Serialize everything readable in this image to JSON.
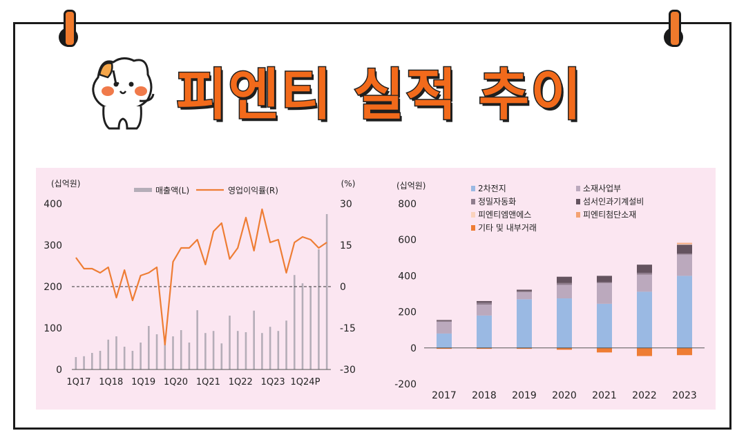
{
  "title": "피엔티 실적 추이",
  "colors": {
    "accent": "#f26a1b",
    "panel_bg": "#fbe6f1",
    "bar_gray": "#b5adb8",
    "line_orange": "#ee7d34"
  },
  "chart_data": [
    {
      "type": "bar+line",
      "title": "",
      "unit_left": "(십억원)",
      "unit_right": "(%)",
      "legend": {
        "bar": "매출액(L)",
        "line": "영업이익률(R)"
      },
      "ylim_left": [
        0,
        400
      ],
      "yticks_left": [
        0,
        100,
        200,
        300,
        400
      ],
      "ylim_right": [
        -30,
        30
      ],
      "yticks_right": [
        "-30",
        "-15",
        "0",
        "15",
        "30"
      ],
      "xtick_labels": [
        "1Q17",
        "1Q18",
        "1Q19",
        "1Q20",
        "1Q21",
        "1Q22",
        "1Q23",
        "1Q24P"
      ],
      "quarters": [
        "1Q17",
        "2Q17",
        "3Q17",
        "4Q17",
        "1Q18",
        "2Q18",
        "3Q18",
        "4Q18",
        "1Q19",
        "2Q19",
        "3Q19",
        "4Q19",
        "1Q20",
        "2Q20",
        "3Q20",
        "4Q20",
        "1Q21",
        "2Q21",
        "3Q21",
        "4Q21",
        "1Q22",
        "2Q22",
        "3Q22",
        "4Q22",
        "1Q23",
        "2Q23",
        "3Q23",
        "4Q23",
        "1Q24",
        "2Q24",
        "3Q24",
        "4Q24"
      ],
      "series": [
        {
          "name": "매출액(L)",
          "type": "bar",
          "axis": "left",
          "values": [
            30,
            32,
            40,
            45,
            72,
            80,
            55,
            45,
            65,
            105,
            85,
            75,
            80,
            95,
            65,
            143,
            88,
            93,
            63,
            130,
            93,
            90,
            142,
            88,
            103,
            93,
            118,
            228,
            208,
            200,
            290,
            375
          ]
        },
        {
          "name": "영업이익률(R)",
          "type": "line",
          "axis": "right",
          "values": [
            10.5,
            6.5,
            6.5,
            5,
            7,
            -4,
            6,
            -5,
            4,
            5,
            7,
            -21,
            9,
            14,
            14,
            17,
            8,
            20,
            23,
            10,
            14,
            25,
            13,
            28,
            16,
            17,
            5,
            16,
            18,
            17,
            14,
            16
          ]
        }
      ],
      "baseline_dashed": 0
    },
    {
      "type": "stacked-bar",
      "title": "",
      "unit": "(십억원)",
      "categories": [
        "2017",
        "2018",
        "2019",
        "2020",
        "2021",
        "2022",
        "2023"
      ],
      "ylim": [
        -200,
        800
      ],
      "yticks": [
        -200,
        0,
        200,
        400,
        600,
        800
      ],
      "series": [
        {
          "name": "2차전지",
          "color": "#9ab9e3",
          "values": [
            80,
            180,
            270,
            275,
            245,
            312,
            400
          ]
        },
        {
          "name": "소재사업부",
          "color": "#bba9bd",
          "values": [
            65,
            60,
            40,
            75,
            115,
            95,
            118
          ]
        },
        {
          "name": "정밀자동화",
          "color": "#8f7d8d",
          "values": [
            5,
            12,
            5,
            10,
            5,
            10,
            5
          ]
        },
        {
          "name": "섬서인과기계설비",
          "color": "#64535f",
          "values": [
            5,
            8,
            8,
            35,
            35,
            45,
            50
          ]
        },
        {
          "name": "피엔티엠앤에스",
          "color": "#fad3bd",
          "values": [
            0,
            0,
            0,
            0,
            0,
            0,
            5
          ]
        },
        {
          "name": "피엔티첨단소재",
          "color": "#f4a272",
          "values": [
            0,
            0,
            0,
            0,
            0,
            0,
            5
          ]
        },
        {
          "name": "기타 및 내부거래",
          "color": "#ee7d34",
          "values": [
            -5,
            -5,
            -5,
            -10,
            -25,
            -45,
            -40
          ]
        }
      ]
    }
  ]
}
